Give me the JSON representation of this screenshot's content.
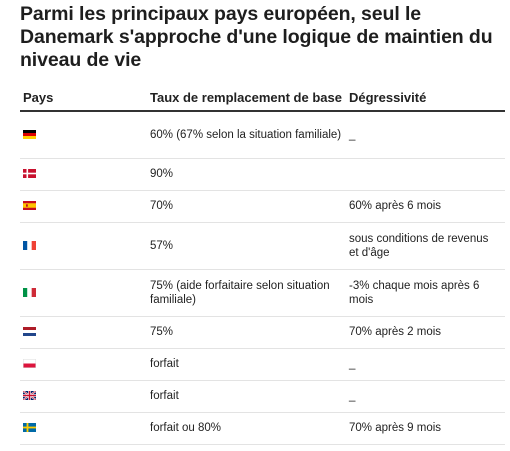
{
  "title": "Parmi les principaux pays européen, seul le Danemark s'approche d'une logique de maintien du niveau de vie",
  "columns": [
    "Pays",
    "Taux de remplacement de base",
    "Dégressivité"
  ],
  "rows": [
    {
      "flag": "germany-flag-icon",
      "taux": "60% (67% selon la situation familiale)",
      "degressivite": "_"
    },
    {
      "flag": "denmark-flag-icon",
      "taux": "90%",
      "degressivite": ""
    },
    {
      "flag": "spain-flag-icon",
      "taux": "70%",
      "degressivite": "60% après 6 mois"
    },
    {
      "flag": "france-flag-icon",
      "taux": "57%",
      "degressivite": "sous conditions de revenus et d'âge"
    },
    {
      "flag": "italy-flag-icon",
      "taux": "75% (aide forfaitaire selon situation familiale)",
      "degressivite": "-3% chaque mois après 6 mois"
    },
    {
      "flag": "netherlands-flag-icon",
      "taux": "75%",
      "degressivite": "70% après 2 mois"
    },
    {
      "flag": "poland-flag-icon",
      "taux": "forfait",
      "degressivite": "_"
    },
    {
      "flag": "united-kingdom-flag-icon",
      "taux": "forfait",
      "degressivite": "_"
    },
    {
      "flag": "sweden-flag-icon",
      "taux": "forfait ou 80%",
      "degressivite": "70% après 9 mois"
    }
  ]
}
